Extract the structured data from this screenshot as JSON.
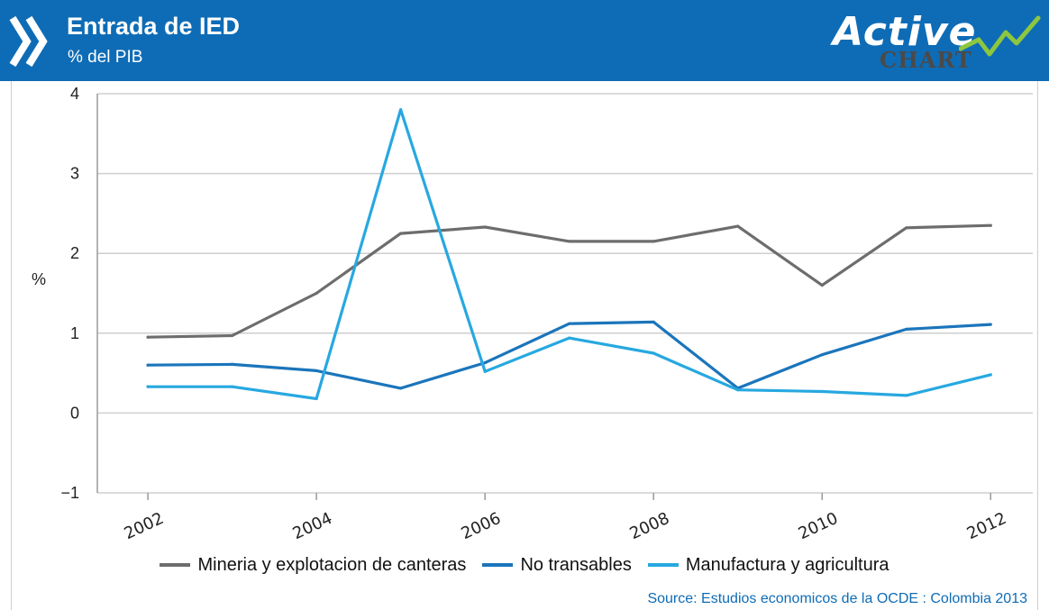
{
  "header": {
    "title": "Entrada de IED",
    "subtitle": "% del PIB",
    "logo_text": "Active",
    "logo_subtext": "CHART"
  },
  "colors": {
    "header_bg": "#0e6cb6",
    "series_mineria": "#6d6d6d",
    "series_no_transables": "#1b75bb",
    "series_manufactura": "#27a8e0",
    "source_text": "#0e6cb6"
  },
  "chart_data": {
    "type": "line",
    "title": "Entrada de IED",
    "subtitle": "% del PIB",
    "xlabel": "",
    "ylabel": "%",
    "x": [
      2002,
      2003,
      2004,
      2005,
      2006,
      2007,
      2008,
      2009,
      2010,
      2011,
      2012
    ],
    "x_ticks": [
      "2002",
      "2004",
      "2006",
      "2008",
      "2010",
      "2012"
    ],
    "y_ticks": [
      "4",
      "3",
      "2",
      "1",
      "0",
      "−1"
    ],
    "ylim": [
      -1,
      4
    ],
    "xlim": [
      2001.4,
      2012.5
    ],
    "grid": "horizontal",
    "legend_position": "bottom",
    "series": [
      {
        "name": "Mineria y explotacion de canteras",
        "color": "#6d6d6d",
        "values": [
          0.95,
          0.97,
          1.5,
          2.25,
          2.33,
          2.15,
          2.15,
          2.34,
          1.6,
          2.32,
          2.35
        ]
      },
      {
        "name": "No transables",
        "color": "#1b75bb",
        "values": [
          0.6,
          0.61,
          0.53,
          0.31,
          0.63,
          1.12,
          1.14,
          0.31,
          0.73,
          1.05,
          1.11
        ]
      },
      {
        "name": "Manufactura y agricultura",
        "color": "#27a8e0",
        "values": [
          0.33,
          0.33,
          0.18,
          3.8,
          0.52,
          0.94,
          0.75,
          0.29,
          0.27,
          0.22,
          0.48
        ]
      }
    ]
  },
  "source": "Source: Estudios economicos de la OCDE : Colombia 2013"
}
